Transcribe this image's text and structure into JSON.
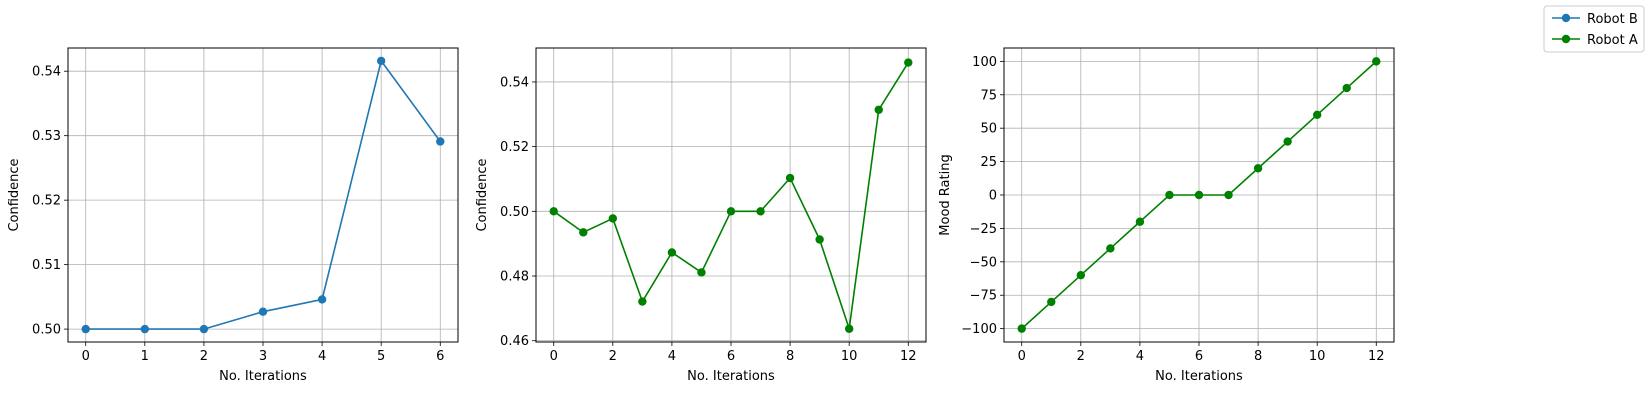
{
  "legend": {
    "placement": "top-right",
    "entries": [
      {
        "label": "Robot B",
        "color": "#1f77b4"
      },
      {
        "label": "Robot A",
        "color": "#008000"
      }
    ]
  },
  "chart_data": [
    {
      "type": "line",
      "xlabel": "No. Iterations",
      "ylabel": "Confidence",
      "grid": true,
      "series": [
        {
          "name": "Robot B",
          "color": "#1f77b4",
          "marker": "circle",
          "x": [
            0,
            1,
            2,
            3,
            4,
            5,
            6
          ],
          "y": [
            0.5,
            0.5,
            0.5,
            0.5027,
            0.5046,
            0.5416,
            0.5291
          ]
        }
      ],
      "xlim": [
        -0.3,
        6.3
      ],
      "ylim": [
        0.498,
        0.5436
      ],
      "xticks": [
        0,
        1,
        2,
        3,
        4,
        5,
        6
      ],
      "xtick_labels": [
        "0",
        "1",
        "2",
        "3",
        "4",
        "5",
        "6"
      ],
      "yticks": [
        0.5,
        0.51,
        0.52,
        0.53,
        0.54
      ],
      "ytick_labels": [
        "0.50",
        "0.51",
        "0.52",
        "0.53",
        "0.54"
      ]
    },
    {
      "type": "line",
      "xlabel": "No. Iterations",
      "ylabel": "Confidence",
      "grid": true,
      "series": [
        {
          "name": "Robot A",
          "color": "#008000",
          "marker": "circle",
          "x": [
            0,
            1,
            2,
            3,
            4,
            5,
            6,
            7,
            8,
            9,
            10,
            11,
            12
          ],
          "y": [
            0.5,
            0.4935,
            0.4978,
            0.4721,
            0.4873,
            0.4811,
            0.5,
            0.5,
            0.5103,
            0.4913,
            0.4637,
            0.5314,
            0.546
          ]
        }
      ],
      "xlim": [
        -0.6,
        12.6
      ],
      "ylim": [
        0.4596,
        0.5505
      ],
      "xticks": [
        0,
        2,
        4,
        6,
        8,
        10,
        12
      ],
      "xtick_labels": [
        "0",
        "2",
        "4",
        "6",
        "8",
        "10",
        "12"
      ],
      "yticks": [
        0.46,
        0.48,
        0.5,
        0.52,
        0.54
      ],
      "ytick_labels": [
        "0.46",
        "0.48",
        "0.50",
        "0.52",
        "0.54"
      ]
    },
    {
      "type": "line",
      "xlabel": "No. Iterations",
      "ylabel": "Mood Rating",
      "grid": true,
      "series": [
        {
          "name": "Robot A",
          "color": "#008000",
          "marker": "circle",
          "x": [
            0,
            1,
            2,
            3,
            4,
            5,
            6,
            7,
            8,
            9,
            10,
            11,
            12
          ],
          "y": [
            -100,
            -80,
            -60,
            -40,
            -20,
            0,
            0,
            0,
            20,
            40,
            60,
            80,
            100
          ]
        }
      ],
      "xlim": [
        -0.6,
        12.6
      ],
      "ylim": [
        -110,
        110
      ],
      "xticks": [
        0,
        2,
        4,
        6,
        8,
        10,
        12
      ],
      "xtick_labels": [
        "0",
        "2",
        "4",
        "6",
        "8",
        "10",
        "12"
      ],
      "yticks": [
        -100,
        -75,
        -50,
        -25,
        0,
        25,
        50,
        75,
        100
      ],
      "ytick_labels": [
        "−100",
        "−75",
        "−50",
        "−25",
        "0",
        "25",
        "50",
        "75",
        "100"
      ]
    }
  ]
}
